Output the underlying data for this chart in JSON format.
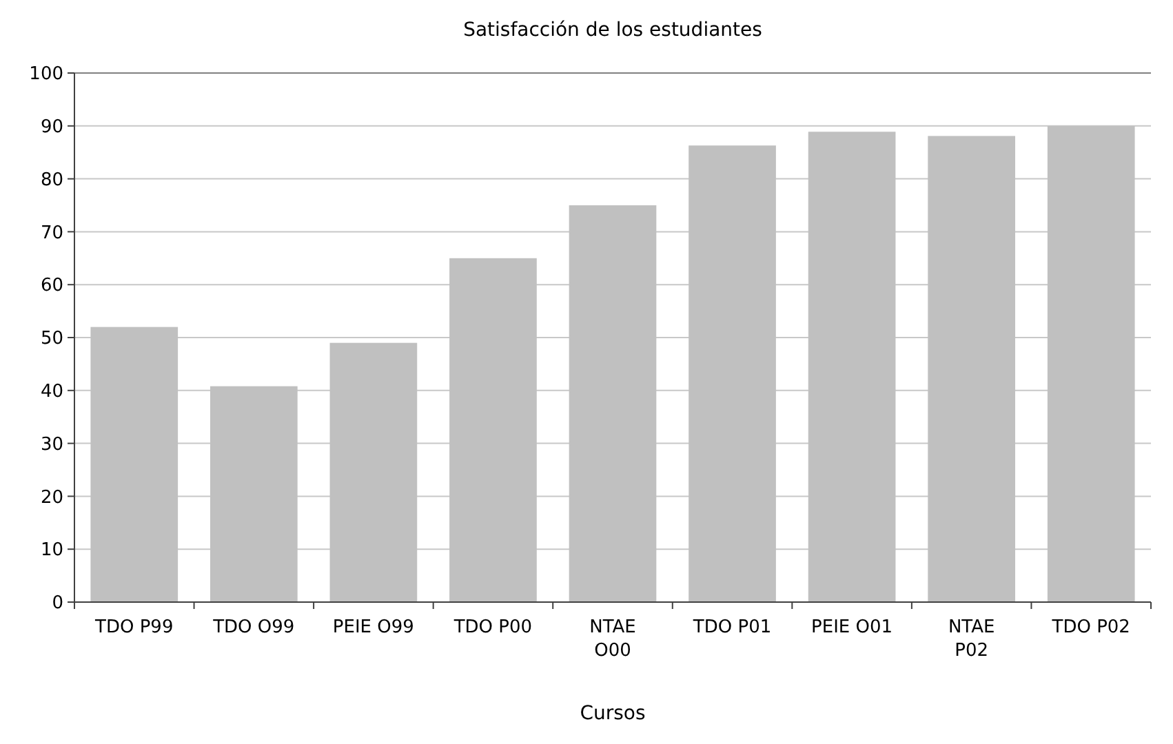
{
  "chart_data": {
    "type": "bar",
    "title": "Satisfacción de los estudiantes",
    "xlabel": "Cursos",
    "categories": [
      "TDO P99",
      "TDO O99",
      "PEIE O99",
      "TDO P00",
      "NTAE\nO00",
      "TDO P01",
      "PEIE O01",
      "NTAE\nP02",
      "TDO P02"
    ],
    "values": [
      52,
      40.8,
      49,
      65,
      75,
      86.3,
      88.9,
      88.1,
      90
    ],
    "color": "#c0c0c0",
    "ylim": [
      0,
      100
    ],
    "yticks": [
      0,
      10,
      20,
      30,
      40,
      50,
      60,
      70,
      80,
      90,
      100
    ],
    "grid": "y"
  }
}
